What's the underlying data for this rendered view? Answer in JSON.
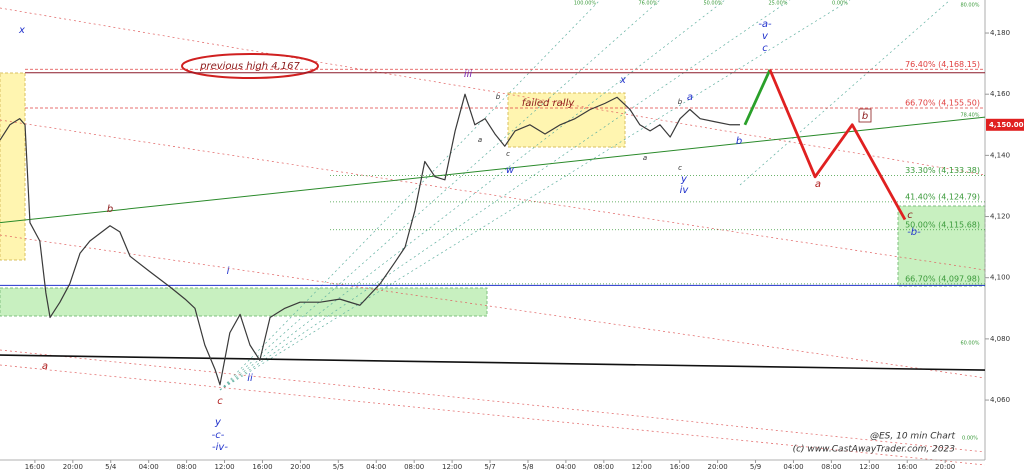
{
  "chart_data": {
    "type": "line",
    "title": "@ES, 10 min Chart",
    "subtitle": "(c) www.CastAwayTrader.com, 2023",
    "xlim": [
      -0.92,
      25.05
    ],
    "ylim": [
      4040.4,
      4190.8
    ],
    "xticks": [
      {
        "value": 0,
        "label": "16:00"
      },
      {
        "value": 1,
        "label": "20:00"
      },
      {
        "value": 2,
        "label": "5/4"
      },
      {
        "value": 3,
        "label": "04:00"
      },
      {
        "value": 4,
        "label": "08:00"
      },
      {
        "value": 5,
        "label": "12:00"
      },
      {
        "value": 6,
        "label": "16:00"
      },
      {
        "value": 7,
        "label": "20:00"
      },
      {
        "value": 8,
        "label": "5/5"
      },
      {
        "value": 9,
        "label": "04:00"
      },
      {
        "value": 10,
        "label": "08:00"
      },
      {
        "value": 11,
        "label": "12:00"
      },
      {
        "value": 12,
        "label": "5/7"
      },
      {
        "value": 13,
        "label": "5/8"
      },
      {
        "value": 14,
        "label": "04:00"
      },
      {
        "value": 15,
        "label": "08:00"
      },
      {
        "value": 16,
        "label": "12:00"
      },
      {
        "value": 17,
        "label": "16:00"
      },
      {
        "value": 18,
        "label": "20:00"
      },
      {
        "value": 19,
        "label": "5/9"
      },
      {
        "value": 20,
        "label": "04:00"
      },
      {
        "value": 21,
        "label": "08:00"
      },
      {
        "value": 22,
        "label": "12:00"
      },
      {
        "value": 23,
        "label": "16:00"
      },
      {
        "value": 24,
        "label": "20:00"
      }
    ],
    "yticks": [
      {
        "value": 4060,
        "label": "4,060"
      },
      {
        "value": 4080,
        "label": "4,080"
      },
      {
        "value": 4100,
        "label": "4,100"
      },
      {
        "value": 4120,
        "label": "4,120"
      },
      {
        "value": 4140,
        "label": "4,140"
      },
      {
        "value": 4160,
        "label": "4,160"
      },
      {
        "value": 4180,
        "label": "4,180"
      }
    ],
    "series": [
      {
        "color": "#3a3a3a",
        "x": [
          -0.92,
          -0.66,
          -0.4,
          -0.26,
          -0.13,
          0.13,
          0.29,
          0.4,
          0.66,
          0.92,
          1.19,
          1.45,
          1.98,
          2.24,
          2.51,
          3.03,
          3.56,
          3.96,
          4.22,
          4.48,
          4.75,
          4.88,
          5.14,
          5.41,
          5.67,
          5.93,
          6.2,
          6.59,
          6.99,
          7.52,
          8.04,
          8.57,
          9.1,
          9.49,
          9.76,
          10.02,
          10.28,
          10.55,
          10.81,
          11.08,
          11.34,
          11.6,
          11.87,
          12.13,
          12.39,
          12.66,
          13.05,
          13.45,
          13.85,
          14.24,
          14.64,
          15.03,
          15.35,
          15.69,
          15.95,
          16.22,
          16.48,
          16.75,
          17.01,
          17.27,
          17.54,
          17.93,
          18.33,
          18.59
        ],
        "values": [
          4145,
          4150,
          4152,
          4150,
          4118,
          4112,
          4095,
          4087,
          4092,
          4098,
          4108,
          4112,
          4117,
          4115,
          4107,
          4102,
          4097,
          4093,
          4090,
          4078,
          4070,
          4065,
          4082,
          4088,
          4078,
          4073,
          4087,
          4090,
          4092,
          4092,
          4093,
          4091,
          4098,
          4105,
          4110,
          4122,
          4138,
          4133,
          4132,
          4148,
          4160,
          4150,
          4152,
          4147,
          4143,
          4148,
          4150,
          4147,
          4150,
          4152,
          4155,
          4157,
          4159,
          4155,
          4150,
          4148,
          4150,
          4146,
          4152,
          4155,
          4152,
          4151,
          4150,
          4150
        ]
      },
      {
        "color": "#2aa02a",
        "x": [
          18.72,
          19.38
        ],
        "values": [
          4150,
          4168
        ]
      },
      {
        "color": "#e02020",
        "x": [
          19.38,
          20.57,
          21.55,
          22.94
        ],
        "values": [
          4168,
          4133,
          4150,
          4119
        ]
      }
    ],
    "trendlines": [
      {
        "color": "#2a8a2a",
        "x": [
          -0.92,
          25.05
        ],
        "values": [
          4118,
          4152.5
        ]
      },
      {
        "color": "#111111",
        "x": [
          -0.92,
          25.05
        ],
        "values": [
          4074.7,
          4069.8
        ]
      },
      {
        "color": "#2233cc",
        "x": [
          -0.92,
          25.05
        ],
        "values": [
          4097.5,
          4097.5
        ]
      },
      {
        "color": "#8b1a2a",
        "x": [
          -0.26,
          25.05
        ],
        "values": [
          4167,
          4167
        ]
      }
    ],
    "levels": [
      {
        "label": "76.40% (4,168.15)",
        "value": 4168.15,
        "color": "#e04040"
      },
      {
        "label": "66.70% (4,155.50)",
        "value": 4155.5,
        "color": "#e04040"
      },
      {
        "label": "33.30% (4,133.38)",
        "value": 4133.38,
        "color": "#3a9a3a"
      },
      {
        "label": "41.40% (4,124.79)",
        "value": 4124.79,
        "color": "#3a9a3a"
      },
      {
        "label": "50.00% (4,115.68)",
        "value": 4115.68,
        "color": "#3a9a3a"
      },
      {
        "label": "66.70% (4,097.98)",
        "value": 4097.98,
        "color": "#3a9a3a"
      }
    ],
    "last_price": {
      "value": 4150,
      "label": "4,150.00"
    },
    "notes": [
      "previous high 4,167",
      "failed rally"
    ],
    "fan_labels": [
      "100.00%",
      "76.00%",
      "50.00%",
      "25.00%",
      "0.00%",
      "80.00%",
      "78.40%",
      "60.00%",
      "0.00%"
    ],
    "annotations": [
      {
        "text": "x",
        "color": "#2233cc"
      },
      {
        "text": "a",
        "color": "#b02020"
      },
      {
        "text": "b",
        "color": "#8b1a1a"
      },
      {
        "text": "i",
        "color": "#2233cc"
      },
      {
        "text": "ii",
        "color": "#2233cc"
      },
      {
        "text": "c",
        "color": "#b02020"
      },
      {
        "text": "y",
        "color": "#2233cc"
      },
      {
        "text": "-c-",
        "color": "#2233cc"
      },
      {
        "text": "-iv-",
        "color": "#2233cc"
      },
      {
        "text": "iii",
        "color": "#7a2ab0"
      },
      {
        "text": "w",
        "color": "#2233cc"
      },
      {
        "text": "x",
        "color": "#2233cc"
      },
      {
        "text": "a",
        "color": "#333333"
      },
      {
        "text": "b",
        "color": "#333333"
      },
      {
        "text": "c",
        "color": "#333333"
      },
      {
        "text": "a",
        "color": "#333333"
      },
      {
        "text": "b",
        "color": "#333333"
      },
      {
        "text": "c",
        "color": "#333333"
      },
      {
        "text": "y",
        "color": "#2233cc"
      },
      {
        "text": "iv",
        "color": "#2233cc"
      },
      {
        "text": "a",
        "color": "#2233cc"
      },
      {
        "text": "b",
        "color": "#2233cc"
      },
      {
        "text": "-a-",
        "color": "#2233cc"
      },
      {
        "text": "v",
        "color": "#2233cc"
      },
      {
        "text": "c",
        "color": "#2233cc"
      },
      {
        "text": "a",
        "color": "#b02020"
      },
      {
        "text": "b",
        "color": "#8b1a1a"
      },
      {
        "text": "c",
        "color": "#8b1a1a"
      },
      {
        "text": "-b-",
        "color": "#2233cc"
      }
    ]
  }
}
